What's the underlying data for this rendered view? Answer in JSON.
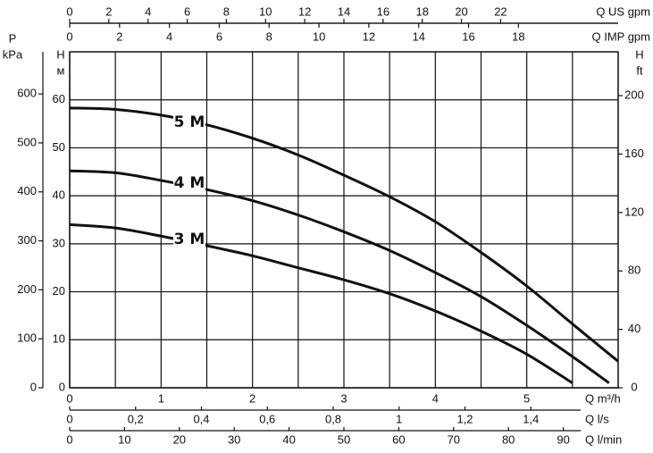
{
  "chart_data": {
    "type": "line",
    "xlabel": "Q m³/h",
    "xlim": [
      0,
      6
    ],
    "xticks": [
      0,
      1,
      2,
      3,
      4,
      5
    ],
    "xgrid": [
      0.5,
      1.5,
      2.5,
      3.5,
      4.5,
      5.5
    ],
    "ylabel": [
      "H",
      "м"
    ],
    "ylim": [
      0,
      70
    ],
    "yticks": [
      0,
      10,
      20,
      30,
      40,
      50,
      60
    ],
    "grid": true,
    "color": "#111111",
    "series": [
      {
        "name": "5 M",
        "x": [
          0,
          0.5,
          1,
          1.5,
          2,
          2.5,
          3,
          3.5,
          4,
          4.5,
          5,
          5.5,
          6
        ],
        "values": [
          58.3,
          58,
          56.8,
          54.8,
          52,
          48.5,
          44.3,
          39.8,
          34.6,
          28.2,
          21.2,
          13.3,
          5.5
        ]
      },
      {
        "name": "4 M",
        "x": [
          0,
          0.5,
          1,
          1.5,
          2,
          2.5,
          3,
          3.5,
          4,
          4.5,
          5,
          5.5,
          5.9
        ],
        "values": [
          45.2,
          44.8,
          43.2,
          41.3,
          39,
          36,
          32.5,
          28.6,
          24,
          19,
          13,
          6.5,
          1
        ]
      },
      {
        "name": "3 M",
        "x": [
          0,
          0.5,
          1,
          1.5,
          2,
          2.5,
          3,
          3.5,
          4,
          4.5,
          5,
          5.5
        ],
        "values": [
          34,
          33.3,
          31.6,
          29.6,
          27.5,
          25,
          22.5,
          19.6,
          16,
          11.8,
          7,
          1
        ]
      }
    ],
    "secondary_axes": [
      {
        "side": "top",
        "label": "Q US gpm",
        "lim": [
          0,
          28
        ],
        "ticks": [
          0,
          2,
          4,
          6,
          8,
          10,
          12,
          14,
          16,
          18,
          20,
          22
        ]
      },
      {
        "side": "top",
        "label": "Q IMP gpm",
        "lim": [
          0,
          22
        ],
        "ticks": [
          0,
          2,
          4,
          6,
          8,
          10,
          12,
          14,
          16,
          18
        ]
      },
      {
        "side": "bottom",
        "label": "Q l/s",
        "lim": [
          0,
          1.665
        ],
        "ticks": [
          0,
          {
            "value": 0.2,
            "label": "0,2"
          },
          {
            "value": 0.4,
            "label": "0,4"
          },
          {
            "value": 0.6,
            "label": "0,6"
          },
          {
            "value": 0.8,
            "label": "0,8"
          },
          1,
          {
            "value": 1.2,
            "label": "1,2"
          },
          {
            "value": 1.4,
            "label": "1,4"
          }
        ]
      },
      {
        "side": "bottom",
        "label": "Q l/min",
        "lim": [
          0,
          100
        ],
        "ticks": [
          0,
          10,
          20,
          30,
          40,
          50,
          60,
          70,
          80,
          90
        ]
      },
      {
        "side": "left",
        "label": [
          "P",
          "kPa"
        ],
        "lim": [
          0,
          686
        ],
        "ticks": [
          0,
          100,
          200,
          300,
          400,
          500,
          600
        ]
      },
      {
        "side": "right",
        "label": [
          "H",
          "ft"
        ],
        "lim": [
          0,
          230
        ],
        "ticks": [
          0,
          40,
          80,
          120,
          160,
          200
        ]
      }
    ]
  }
}
